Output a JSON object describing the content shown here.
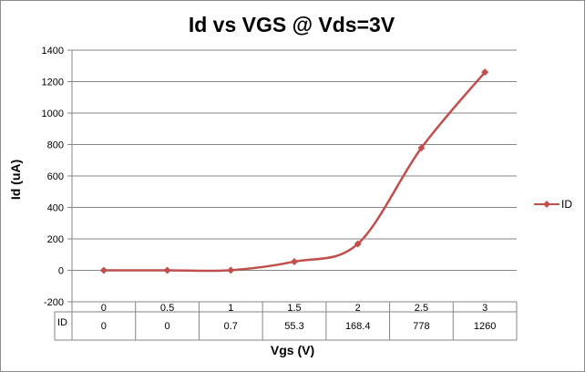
{
  "chart_data": {
    "type": "line",
    "title": "Id vs VGS @ Vds=3V",
    "xlabel": "Vgs (V)",
    "ylabel": "Id (uA)",
    "categories": [
      "0",
      "0.5",
      "1",
      "1.5",
      "2",
      "2.5",
      "3"
    ],
    "series": [
      {
        "name": "ID",
        "values": [
          0,
          0,
          0.7,
          55.3,
          168.4,
          778,
          1260
        ],
        "color": "#c0504d",
        "marker": "diamond",
        "smooth": true
      }
    ],
    "ylim": [
      -200,
      1400
    ],
    "yticks": [
      -200,
      0,
      200,
      400,
      600,
      800,
      1000,
      1200,
      1400
    ],
    "grid": true,
    "legend": "right",
    "data_table": {
      "row_label": "ID",
      "values": [
        "0",
        "0",
        "0.7",
        "55.3",
        "168.4",
        "778",
        "1260"
      ]
    }
  }
}
